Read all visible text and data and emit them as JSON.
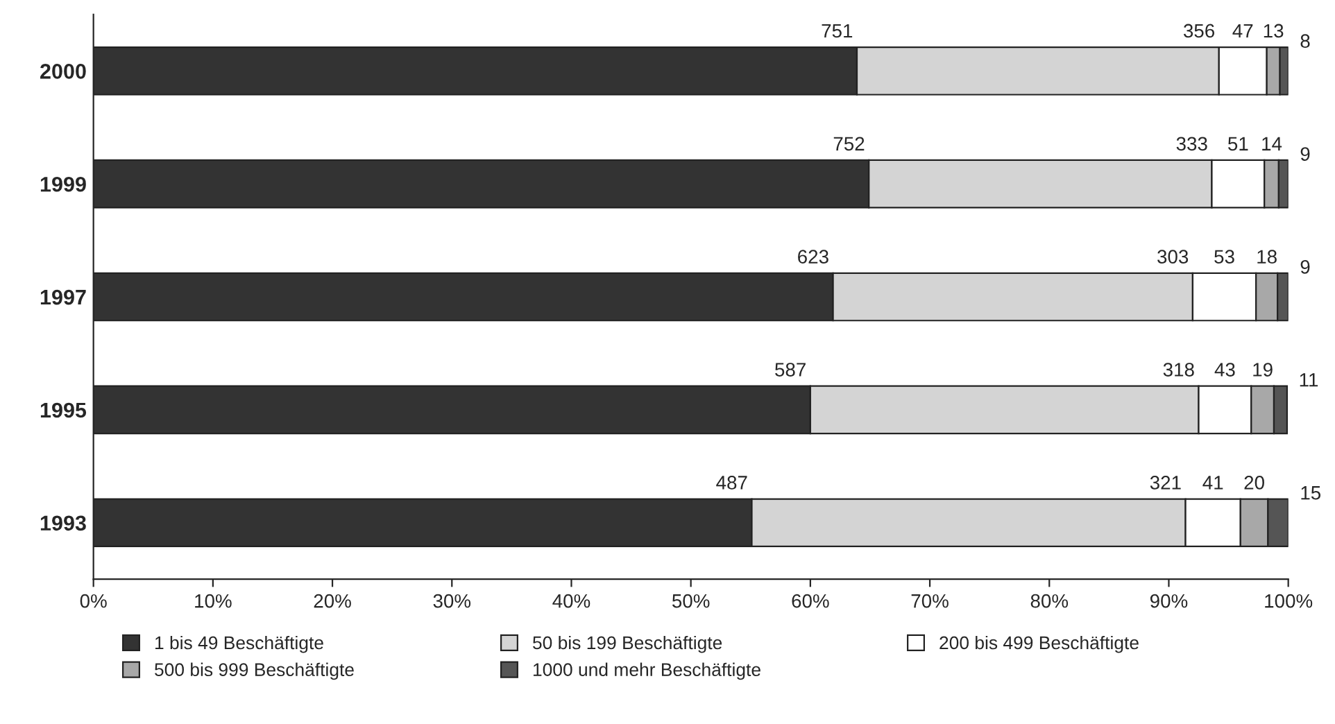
{
  "chart_data": {
    "type": "bar",
    "orientation": "horizontal",
    "stacked": true,
    "categories": [
      "2000",
      "1999",
      "1997",
      "1995",
      "1993"
    ],
    "series": [
      {
        "name": "1 bis 49 Beschäftigte",
        "color": "#333333",
        "values": [
          63.9,
          64.9,
          61.9,
          60.0,
          55.1
        ]
      },
      {
        "name": "50 bis 199 Beschäftigte",
        "color": "#d4d4d4",
        "values": [
          30.3,
          28.7,
          30.1,
          32.5,
          36.3
        ]
      },
      {
        "name": "200 bis 499 Beschäftigte",
        "color": "#ffffff",
        "values": [
          4.0,
          4.4,
          5.3,
          4.4,
          4.6
        ]
      },
      {
        "name": "500 bis 999 Beschäftigte",
        "color": "#a8a8a8",
        "values": [
          1.1,
          1.2,
          1.8,
          1.9,
          2.3
        ]
      },
      {
        "name": "1000 und mehr Beschäftigte",
        "color": "#555555",
        "values": [
          0.7,
          0.8,
          0.9,
          1.1,
          1.7
        ]
      }
    ],
    "annotations": [
      {
        "text": "751",
        "x": 63.9,
        "y": "2000"
      },
      {
        "text": "356",
        "x": 94.2,
        "y": "2000"
      },
      {
        "text": "47",
        "x": 98.2,
        "y": "2000"
      },
      {
        "text": "13",
        "x": 99.3,
        "y": "2000"
      },
      {
        "text": "8",
        "x": 100.0,
        "y": "2000"
      },
      {
        "text": "752",
        "x": 64.9,
        "y": "1999"
      },
      {
        "text": "333",
        "x": 93.6,
        "y": "1999"
      },
      {
        "text": "51",
        "x": 98.0,
        "y": "1999"
      },
      {
        "text": "14",
        "x": 99.2,
        "y": "1999"
      },
      {
        "text": "9",
        "x": 100.0,
        "y": "1999"
      },
      {
        "text": "623",
        "x": 61.9,
        "y": "1997"
      },
      {
        "text": "303",
        "x": 92.0,
        "y": "1997"
      },
      {
        "text": "53",
        "x": 97.3,
        "y": "1997"
      },
      {
        "text": "18",
        "x": 99.1,
        "y": "1997"
      },
      {
        "text": "9",
        "x": 100.0,
        "y": "1997"
      },
      {
        "text": "587",
        "x": 60.0,
        "y": "1995"
      },
      {
        "text": "318",
        "x": 92.5,
        "y": "1995"
      },
      {
        "text": "43",
        "x": 96.9,
        "y": "1995"
      },
      {
        "text": "19",
        "x": 98.8,
        "y": "1995"
      },
      {
        "text": "11",
        "x": 99.9,
        "y": "1995"
      },
      {
        "text": "487",
        "x": 55.1,
        "y": "1993"
      },
      {
        "text": "321",
        "x": 91.4,
        "y": "1993"
      },
      {
        "text": "41",
        "x": 96.0,
        "y": "1993"
      },
      {
        "text": "20",
        "x": 98.3,
        "y": "1993"
      },
      {
        "text": "15",
        "x": 100.0,
        "y": "1993"
      }
    ],
    "xlim": [
      0,
      100
    ],
    "xticks": [
      {
        "value": 0,
        "label": "0%"
      },
      {
        "value": 10,
        "label": "10%"
      },
      {
        "value": 20,
        "label": "20%"
      },
      {
        "value": 30,
        "label": "30%"
      },
      {
        "value": 40,
        "label": "40%"
      },
      {
        "value": 50,
        "label": "50%"
      },
      {
        "value": 60,
        "label": "60%"
      },
      {
        "value": 70,
        "label": "70%"
      },
      {
        "value": 80,
        "label": "80%"
      },
      {
        "value": 90,
        "label": "90%"
      },
      {
        "value": 100,
        "label": "100%"
      }
    ],
    "legend": "bottom",
    "grid": false
  }
}
